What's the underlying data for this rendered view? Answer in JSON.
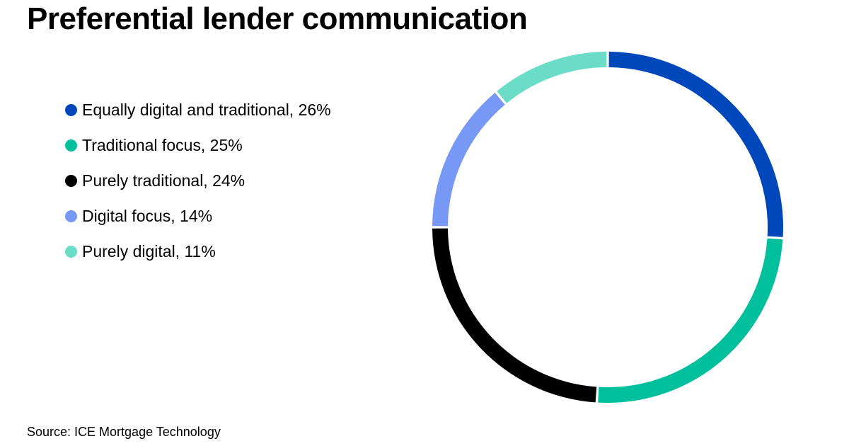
{
  "title": "Preferential lender communication",
  "source": "Source: ICE Mortgage Technology",
  "chart_data": {
    "type": "pie",
    "variant": "donut",
    "title": "Preferential lender communication",
    "legend_position": "left",
    "slices": [
      {
        "label": "Equally digital and traditional",
        "value": 26,
        "legend_text": "Equally digital and traditional, 26%",
        "color": "#0047BB"
      },
      {
        "label": "Traditional focus",
        "value": 25,
        "legend_text": "Traditional focus, 25%",
        "color": "#00BF9C"
      },
      {
        "label": "Purely traditional",
        "value": 24,
        "legend_text": "Purely traditional, 24%",
        "color": "#000000"
      },
      {
        "label": "Digital focus",
        "value": 14,
        "legend_text": "Digital focus, 14%",
        "color": "#7799F5"
      },
      {
        "label": "Purely digital",
        "value": 11,
        "legend_text": "Purely digital, 11%",
        "color": "#6ADCC8"
      }
    ]
  }
}
